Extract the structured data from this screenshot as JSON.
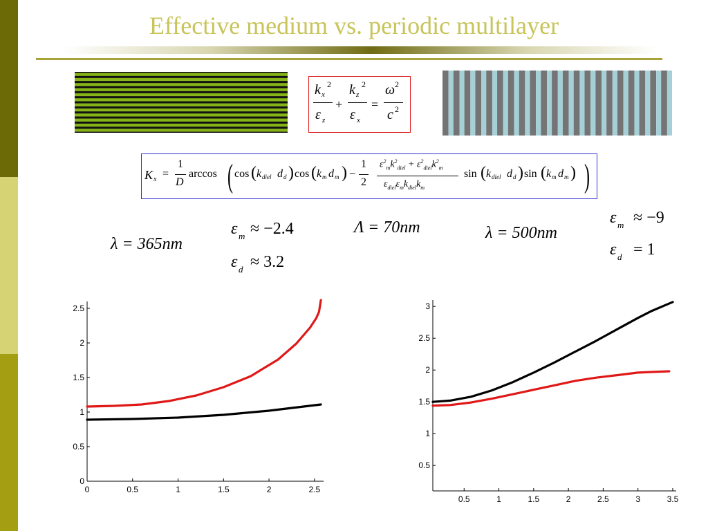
{
  "slide": {
    "title": "Effective medium vs. periodic multilayer",
    "colors": {
      "title": "#c8c45a",
      "accent_rule": "#a8a43a",
      "sidebar": [
        "#6b6a07",
        "#d6d374",
        "#a39e12"
      ],
      "green_layer": "#86b418",
      "blue_layer": "#a6d0d8",
      "gray_layer": "#747474",
      "red_series": "#e01818",
      "black_series": "#000000",
      "formula_box_red": "#e01818",
      "formula_box_blue": "#3030d0"
    }
  },
  "figures": {
    "horizontal_stack": {
      "layers": 12
    },
    "vertical_stack": {
      "layers": 21
    }
  },
  "formulas": {
    "dispersion": {
      "kx": "k",
      "kx_sub": "x",
      "kz": "k",
      "kz_sub": "z",
      "sq": "2",
      "eps": "ε",
      "eps_z": "z",
      "eps_x": "x",
      "plus": "+",
      "eq": "=",
      "omega": "ω",
      "c": "c"
    },
    "kx": {
      "lhs": "K",
      "lhs_sub": "x",
      "eq": "=",
      "one": "1",
      "D": "D",
      "arccos": "arccos",
      "cos1": "cos",
      "k_diel": "k",
      "sub_diel": "diel",
      "d_d": "d",
      "sub_d": "d",
      "cos2": "cos",
      "k_m": "k",
      "sub_m": "m",
      "d_m": "d",
      "minus": "−",
      "half_num": "1",
      "half_den": "2",
      "sin1": "sin",
      "sin2": "sin"
    }
  },
  "params": {
    "left_lambda": "λ = 365nm",
    "left_eps_m": "ε",
    "left_eps_m_sub": "m",
    "left_eps_m_val": "≈ −2.4",
    "left_eps_d": "ε",
    "left_eps_d_sub": "d",
    "left_eps_d_val": "≈ 3.2",
    "period": "Λ = 70nm",
    "right_lambda": "λ = 500nm",
    "right_eps_m": "ε",
    "right_eps_m_sub": "m",
    "right_eps_m_val": "≈ −9",
    "right_eps_d": "ε",
    "right_eps_d_sub": "d",
    "right_eps_d_val": "= 1"
  },
  "chart_data": [
    {
      "type": "line",
      "xlim": [
        0,
        2.6
      ],
      "ylim": [
        0,
        2.6
      ],
      "x_ticks": [
        "0",
        "0.5",
        "1",
        "1.5",
        "2",
        "2.5"
      ],
      "y_ticks": [
        "0",
        "0.5",
        "1",
        "1.5",
        "2",
        "2.5"
      ],
      "series": [
        {
          "color": "#e01818",
          "x": [
            0.0,
            0.3,
            0.6,
            0.9,
            1.2,
            1.5,
            1.8,
            2.1,
            2.3,
            2.45,
            2.52,
            2.55,
            2.57
          ],
          "y": [
            1.08,
            1.09,
            1.11,
            1.16,
            1.24,
            1.36,
            1.52,
            1.76,
            1.99,
            2.22,
            2.36,
            2.45,
            2.62
          ]
        },
        {
          "color": "#000000",
          "x": [
            0.0,
            0.5,
            1.0,
            1.5,
            2.0,
            2.57
          ],
          "y": [
            0.89,
            0.9,
            0.92,
            0.96,
            1.02,
            1.11
          ]
        }
      ]
    },
    {
      "type": "line",
      "xlim": [
        0.05,
        3.55
      ],
      "ylim": [
        0.1,
        3.1
      ],
      "x_ticks": [
        "0.5",
        "1",
        "1.5",
        "2",
        "2.5",
        "3",
        "3.5"
      ],
      "y_ticks": [
        "0.5",
        "1",
        "1.5",
        "2",
        "2.5",
        "3"
      ],
      "series": [
        {
          "color": "#000000",
          "x": [
            0.05,
            0.3,
            0.6,
            0.9,
            1.2,
            1.5,
            1.8,
            2.1,
            2.4,
            2.7,
            3.0,
            3.2,
            3.5
          ],
          "y": [
            1.5,
            1.52,
            1.58,
            1.68,
            1.81,
            1.96,
            2.12,
            2.29,
            2.46,
            2.64,
            2.82,
            2.93,
            3.07
          ]
        },
        {
          "color": "#e01818",
          "x": [
            0.05,
            0.3,
            0.6,
            0.9,
            1.2,
            1.5,
            1.8,
            2.1,
            2.4,
            2.7,
            3.0,
            3.2,
            3.45
          ],
          "y": [
            1.44,
            1.45,
            1.49,
            1.55,
            1.62,
            1.69,
            1.76,
            1.83,
            1.88,
            1.92,
            1.96,
            1.97,
            1.98
          ]
        }
      ]
    }
  ]
}
